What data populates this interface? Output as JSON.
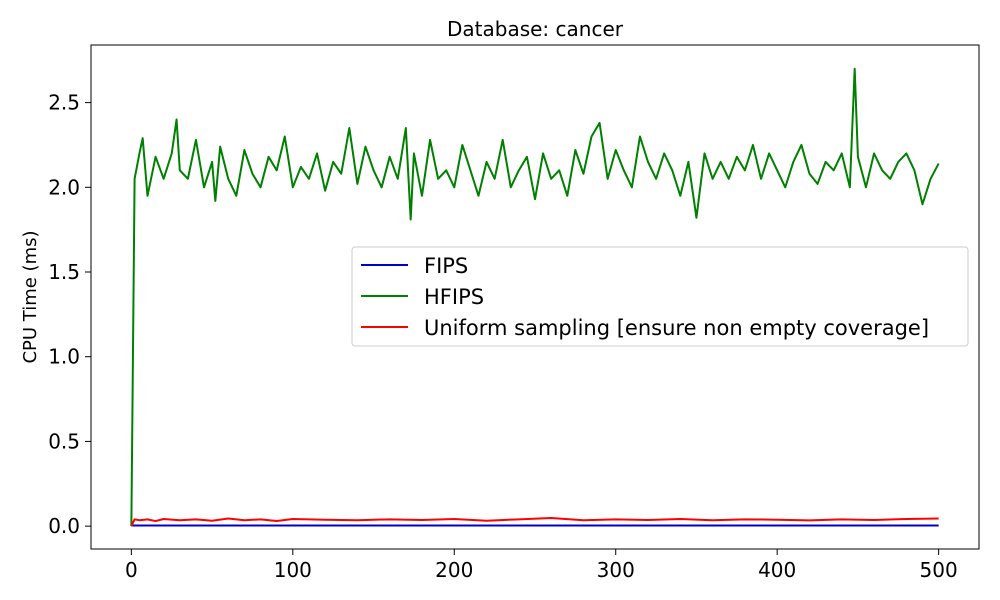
{
  "chart_data": {
    "type": "line",
    "title": "Database: cancer",
    "xlabel": "",
    "ylabel": "CPU Time (ms)",
    "xlim": [
      -25,
      525
    ],
    "ylim": [
      -0.135,
      2.84
    ],
    "xticks": [
      0,
      100,
      200,
      300,
      400,
      500
    ],
    "xtick_labels": [
      "0",
      "100",
      "200",
      "300",
      "400",
      "500"
    ],
    "yticks": [
      0.0,
      0.5,
      1.0,
      1.5,
      2.0,
      2.5
    ],
    "ytick_labels": [
      "0.0",
      "0.5",
      "1.0",
      "1.5",
      "2.0",
      "2.5"
    ],
    "grid": false,
    "legend_position": "center-right",
    "series": [
      {
        "name": "FIPS",
        "color": "#0000cc",
        "x": [
          0,
          500
        ],
        "y": [
          0.004,
          0.004
        ]
      },
      {
        "name": "HFIPS",
        "color": "#008000",
        "x": [
          0,
          2,
          5,
          7,
          10,
          15,
          20,
          25,
          28,
          30,
          35,
          40,
          45,
          50,
          52,
          55,
          60,
          65,
          70,
          75,
          80,
          85,
          90,
          95,
          100,
          105,
          110,
          115,
          120,
          125,
          130,
          135,
          140,
          145,
          150,
          155,
          160,
          165,
          170,
          173,
          175,
          180,
          185,
          190,
          195,
          200,
          205,
          210,
          215,
          220,
          225,
          230,
          235,
          240,
          245,
          250,
          255,
          260,
          265,
          270,
          275,
          280,
          285,
          290,
          295,
          300,
          305,
          310,
          315,
          320,
          325,
          330,
          335,
          340,
          345,
          350,
          355,
          360,
          365,
          370,
          375,
          380,
          385,
          390,
          395,
          400,
          405,
          410,
          415,
          420,
          425,
          430,
          435,
          440,
          445,
          448,
          450,
          455,
          460,
          465,
          470,
          475,
          480,
          485,
          490,
          495,
          500
        ],
        "y": [
          0.0,
          2.05,
          2.2,
          2.29,
          1.95,
          2.18,
          2.05,
          2.2,
          2.4,
          2.1,
          2.05,
          2.28,
          2.0,
          2.15,
          1.92,
          2.24,
          2.05,
          1.95,
          2.22,
          2.08,
          2.0,
          2.18,
          2.1,
          2.3,
          2.0,
          2.12,
          2.05,
          2.2,
          1.98,
          2.15,
          2.08,
          2.35,
          2.02,
          2.24,
          2.1,
          2.0,
          2.18,
          2.05,
          2.35,
          1.81,
          2.2,
          1.95,
          2.28,
          2.05,
          2.1,
          2.0,
          2.25,
          2.1,
          1.95,
          2.15,
          2.05,
          2.28,
          2.0,
          2.1,
          2.18,
          1.93,
          2.2,
          2.05,
          2.1,
          1.95,
          2.22,
          2.08,
          2.3,
          2.38,
          2.05,
          2.22,
          2.1,
          2.0,
          2.3,
          2.15,
          2.05,
          2.2,
          2.1,
          1.95,
          2.15,
          1.82,
          2.2,
          2.05,
          2.15,
          2.05,
          2.18,
          2.1,
          2.25,
          2.05,
          2.2,
          2.1,
          2.0,
          2.15,
          2.25,
          2.08,
          2.02,
          2.15,
          2.1,
          2.2,
          2.0,
          2.7,
          2.18,
          2.0,
          2.2,
          2.1,
          2.05,
          2.15,
          2.2,
          2.1,
          1.9,
          2.05,
          2.14
        ]
      },
      {
        "name": "Uniform sampling [ensure non empty coverage]",
        "color": "#ff0000",
        "x": [
          0,
          2,
          5,
          10,
          15,
          20,
          30,
          40,
          50,
          60,
          70,
          80,
          90,
          100,
          120,
          140,
          160,
          180,
          200,
          220,
          240,
          260,
          280,
          300,
          320,
          340,
          360,
          380,
          400,
          420,
          440,
          460,
          480,
          500
        ],
        "y": [
          0.0,
          0.04,
          0.035,
          0.04,
          0.03,
          0.042,
          0.035,
          0.04,
          0.032,
          0.045,
          0.035,
          0.04,
          0.03,
          0.042,
          0.038,
          0.035,
          0.04,
          0.036,
          0.042,
          0.032,
          0.04,
          0.048,
          0.035,
          0.04,
          0.036,
          0.042,
          0.035,
          0.04,
          0.038,
          0.034,
          0.04,
          0.036,
          0.042,
          0.045
        ]
      }
    ]
  }
}
